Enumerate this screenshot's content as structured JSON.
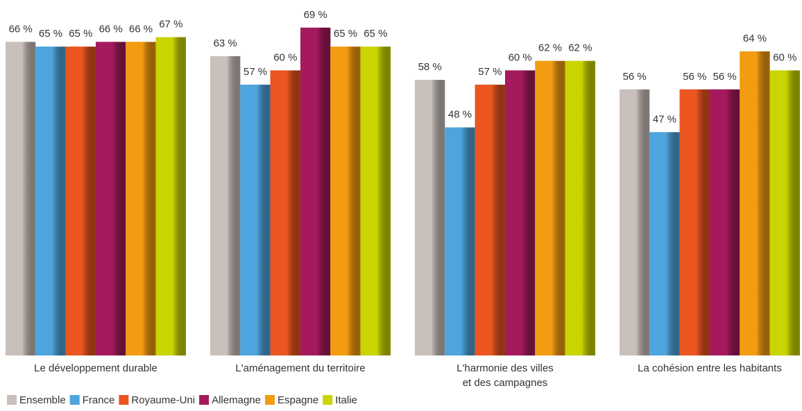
{
  "chart_data": {
    "type": "bar",
    "categories": [
      "Le développement durable",
      "L'aménagement du territoire",
      "L'harmonie des villes\net des campagnes",
      "La cohésion entre les habitants"
    ],
    "series": [
      {
        "name": "Ensemble",
        "color": "#c9c0bc",
        "values": [
          66,
          63,
          58,
          56
        ],
        "value_labels": [
          "66 %",
          "63 %",
          "58 %",
          "56 %"
        ]
      },
      {
        "name": "France",
        "color": "#4ea4dc",
        "values": [
          65,
          57,
          48,
          47
        ],
        "value_labels": [
          "65 %",
          "57 %",
          "48 %",
          "47 %"
        ]
      },
      {
        "name": "Royaume-Uni",
        "color": "#ea5520",
        "values": [
          65,
          60,
          57,
          56
        ],
        "value_labels": [
          "65 %",
          "60 %",
          "57 %",
          "56 %"
        ]
      },
      {
        "name": "Allemagne",
        "color": "#a41a5c",
        "values": [
          66,
          69,
          60,
          56
        ],
        "value_labels": [
          "66 %",
          "69 %",
          "60 %",
          "56 %"
        ]
      },
      {
        "name": "Espagne",
        "color": "#f39c12",
        "values": [
          66,
          65,
          62,
          64
        ],
        "value_labels": [
          "66 %",
          "65 %",
          "62 %",
          "64 %"
        ]
      },
      {
        "name": "Italie",
        "color": "#c9d400",
        "values": [
          67,
          65,
          62,
          60
        ],
        "value_labels": [
          "67 %",
          "65 %",
          "62 %",
          "60 %"
        ]
      }
    ],
    "ylim": [
      0,
      70
    ],
    "legend": "bottom-left"
  }
}
